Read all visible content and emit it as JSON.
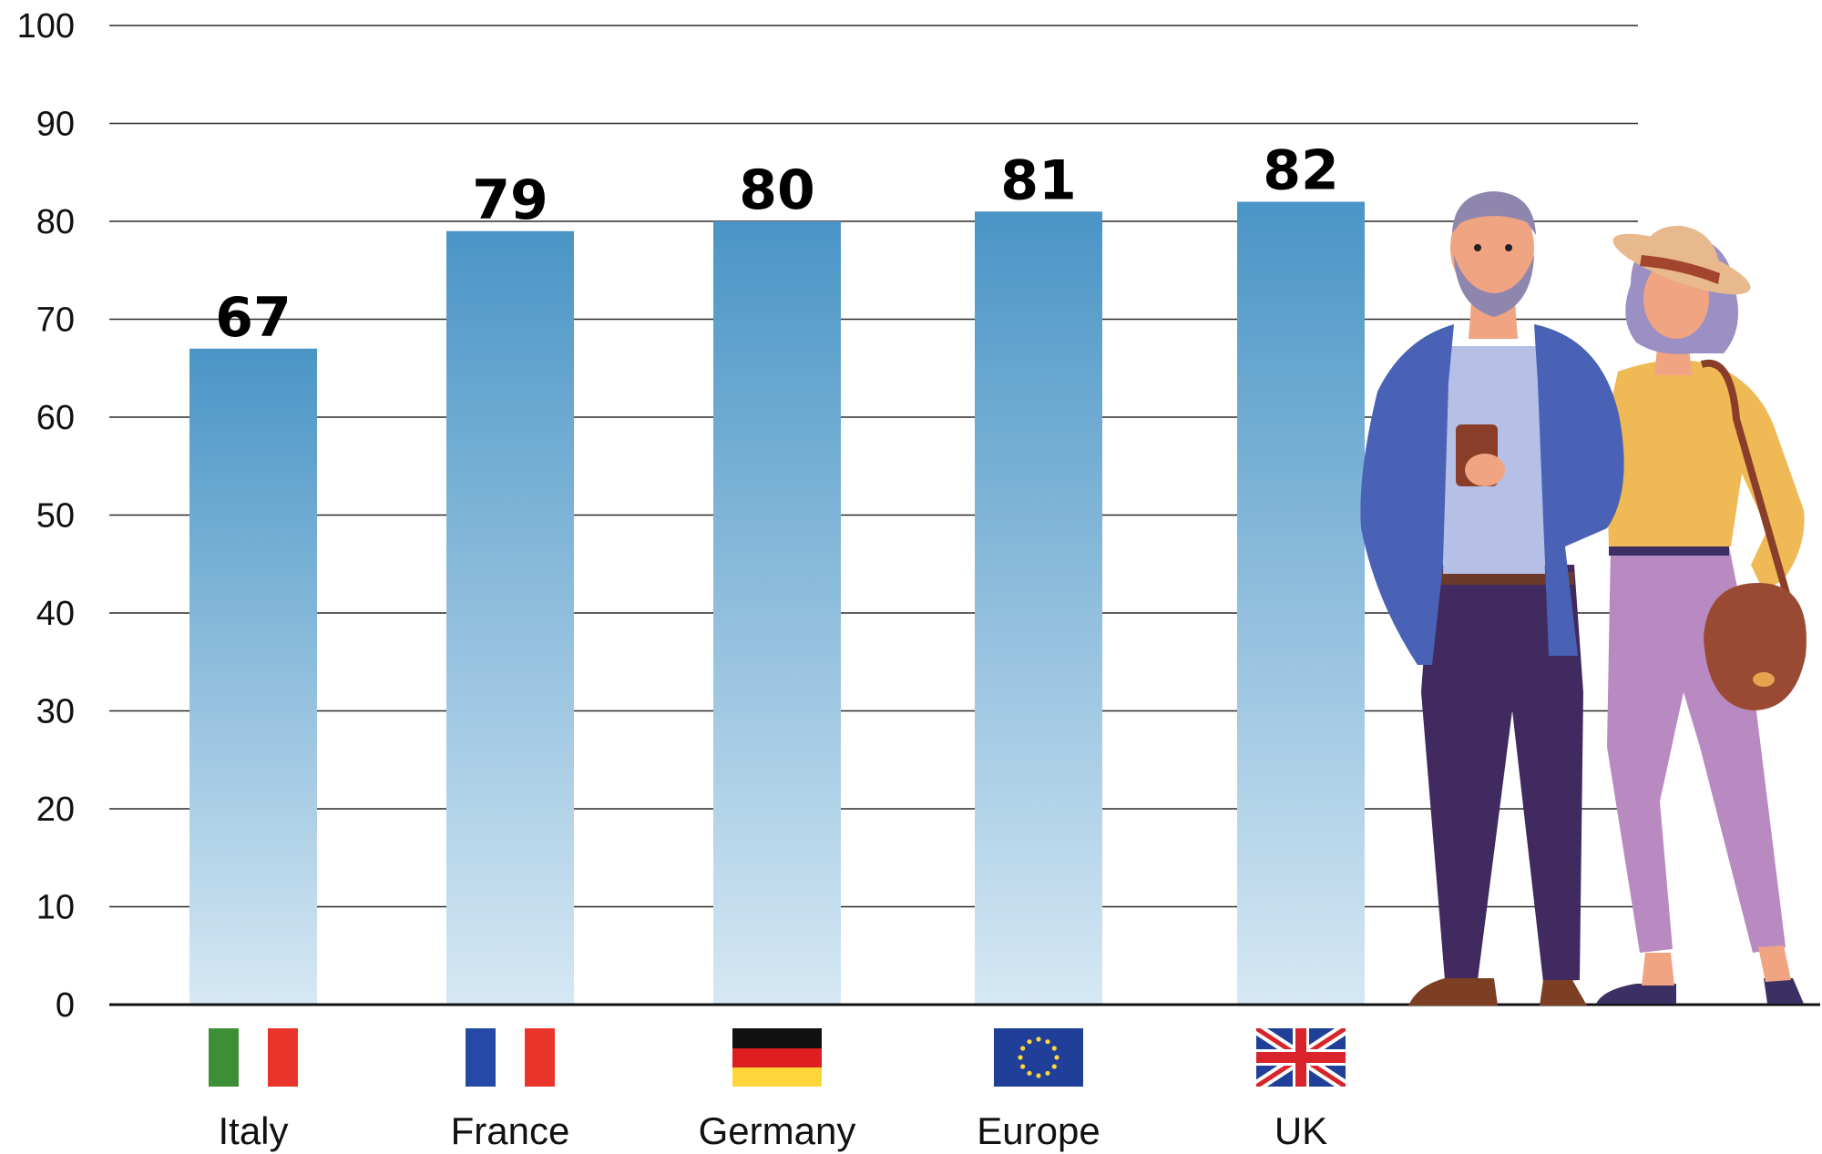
{
  "chart_data": {
    "type": "bar",
    "title": "",
    "xlabel": "",
    "ylabel": "",
    "categories": [
      "Italy",
      "France",
      "Germany",
      "Europe",
      "UK"
    ],
    "values": [
      67,
      79,
      80,
      81,
      82
    ],
    "ylim": [
      0,
      100
    ],
    "yticks": [
      0,
      10,
      20,
      30,
      40,
      50,
      60,
      70,
      80,
      90,
      100
    ],
    "grid": true,
    "data_labels": true,
    "bar_color_top": "#4a95c6",
    "bar_color_bottom": "#d6e8f4",
    "category_icons": [
      "italy-flag-icon",
      "france-flag-icon",
      "germany-flag-icon",
      "eu-flag-icon",
      "uk-flag-icon"
    ]
  },
  "illustration": "senior-couple-illustration"
}
